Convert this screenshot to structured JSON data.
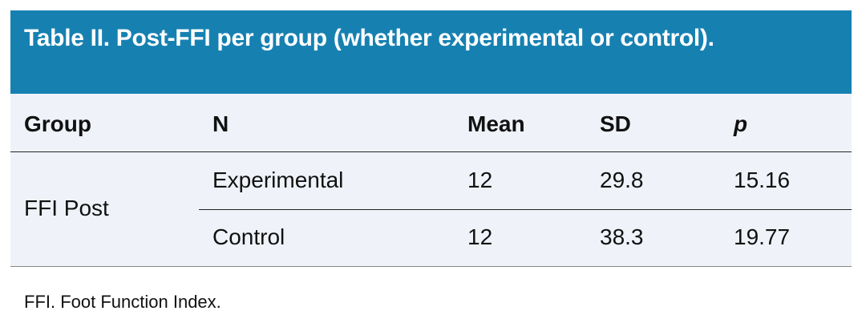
{
  "title": "Table II. Post-FFI per group (whether experimental or control).",
  "columns": [
    "Group",
    "N",
    "Mean",
    "SD",
    "p"
  ],
  "group": "FFI Post",
  "rows": [
    {
      "label": "Experimental",
      "mean": "12",
      "sd": "29.8",
      "p": "15.16"
    },
    {
      "label": "Control",
      "mean": "12",
      "sd": "38.3",
      "p": "19.77"
    }
  ],
  "footnote": "FFI. Foot Function Index.",
  "colors": {
    "header": "#1681b1",
    "body": "#eff3f9"
  }
}
